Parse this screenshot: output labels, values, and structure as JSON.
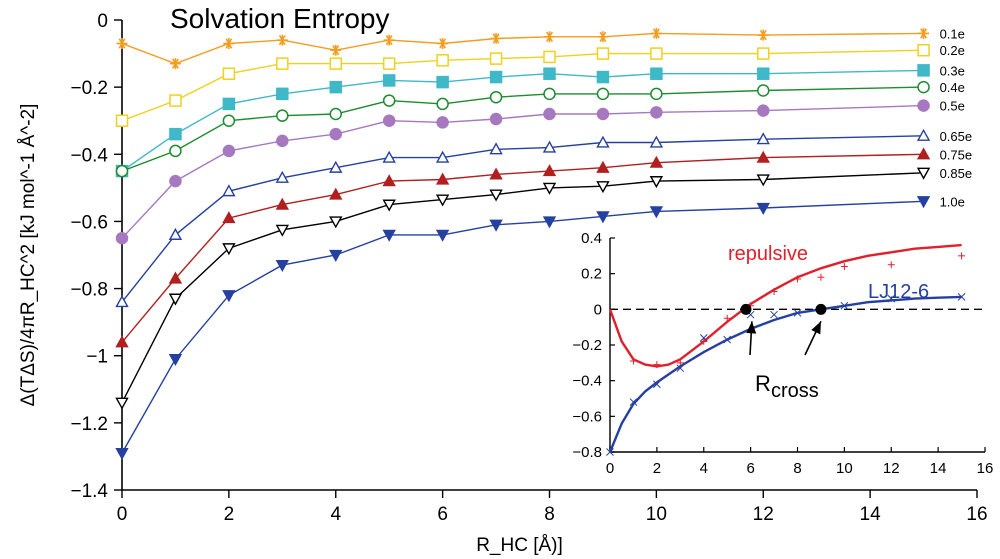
{
  "chart_data": [
    {
      "type": "line",
      "title": "Solvation Entropy",
      "xlabel": "R_HC [Å)]",
      "ylabel": "Δ(TΔS)/4πR_HC^2 [kJ mol^-1 Å^-2]",
      "xlim": [
        0,
        16
      ],
      "ylim": [
        -1.4,
        0
      ],
      "xticks": [
        "0",
        "2",
        "4",
        "6",
        "8",
        "10",
        "12",
        "14",
        "16"
      ],
      "yticks": [
        "0",
        "−0.2",
        "−0.4",
        "−0.6",
        "−0.8",
        "−1",
        "−1.2",
        "−1.4"
      ],
      "grid": false,
      "x": [
        0,
        1,
        2,
        3,
        4,
        5,
        6,
        7,
        8,
        9,
        10,
        12,
        15
      ],
      "series": [
        {
          "name": "0.1e",
          "color": "#f39c1f",
          "marker": "asterisk",
          "values": [
            -0.07,
            -0.13,
            -0.07,
            -0.06,
            -0.09,
            -0.06,
            -0.07,
            -0.055,
            -0.05,
            -0.05,
            -0.04,
            -0.045,
            -0.04
          ]
        },
        {
          "name": "0.2e",
          "color": "#f0d020",
          "marker": "square-open",
          "values": [
            -0.3,
            -0.24,
            -0.16,
            -0.13,
            -0.13,
            -0.13,
            -0.12,
            -0.115,
            -0.11,
            -0.1,
            -0.1,
            -0.1,
            -0.09
          ]
        },
        {
          "name": "0.3e",
          "color": "#3fb8c8",
          "marker": "square-filled",
          "values": [
            -0.45,
            -0.34,
            -0.25,
            -0.22,
            -0.2,
            -0.18,
            -0.185,
            -0.17,
            -0.16,
            -0.17,
            -0.16,
            -0.16,
            -0.15
          ]
        },
        {
          "name": "0.4e",
          "color": "#1e8c2f",
          "marker": "circle-open",
          "values": [
            -0.45,
            -0.39,
            -0.3,
            -0.285,
            -0.28,
            -0.24,
            -0.25,
            -0.23,
            -0.22,
            -0.22,
            -0.22,
            -0.21,
            -0.2
          ]
        },
        {
          "name": "0.5e",
          "color": "#a678c0",
          "marker": "circle-filled",
          "values": [
            -0.65,
            -0.48,
            -0.39,
            -0.36,
            -0.34,
            -0.3,
            -0.305,
            -0.295,
            -0.28,
            -0.28,
            -0.275,
            -0.27,
            -0.255
          ]
        },
        {
          "name": "0.65e",
          "color": "#2540a0",
          "marker": "triangle-open",
          "values": [
            -0.84,
            -0.64,
            -0.51,
            -0.47,
            -0.44,
            -0.41,
            -0.41,
            -0.385,
            -0.38,
            -0.365,
            -0.365,
            -0.355,
            -0.345
          ]
        },
        {
          "name": "0.75e",
          "color": "#b02020",
          "marker": "triangle-filled",
          "values": [
            -0.96,
            -0.77,
            -0.59,
            -0.55,
            -0.52,
            -0.48,
            -0.475,
            -0.46,
            -0.45,
            -0.44,
            -0.425,
            -0.41,
            -0.4
          ]
        },
        {
          "name": "0.85e",
          "color": "#000000",
          "marker": "triangle-down-open",
          "values": [
            -1.14,
            -0.83,
            -0.68,
            -0.625,
            -0.6,
            -0.55,
            -0.535,
            -0.52,
            -0.5,
            -0.495,
            -0.48,
            -0.475,
            -0.455
          ]
        },
        {
          "name": "1.0e",
          "color": "#2540a0",
          "marker": "triangle-down-filled",
          "values": [
            -1.29,
            -1.01,
            -0.82,
            -0.73,
            -0.7,
            -0.64,
            -0.64,
            -0.61,
            -0.6,
            -0.585,
            -0.57,
            -0.56,
            -0.54
          ]
        }
      ]
    },
    {
      "type": "line",
      "inset": true,
      "xlim": [
        0,
        16
      ],
      "ylim": [
        -0.8,
        0.4
      ],
      "xticks": [
        "0",
        "2",
        "4",
        "6",
        "8",
        "10",
        "12",
        "14",
        "16"
      ],
      "yticks": [
        "0.4",
        "0.2",
        "0",
        "−0.2",
        "−0.4",
        "−0.6",
        "−0.8"
      ],
      "annotation": "R",
      "annotation_sub": "cross",
      "crossings": [
        5.8,
        9.0
      ],
      "series": [
        {
          "name": "repulsive",
          "color": "#e0202c",
          "curve_x": [
            0,
            0.5,
            1,
            1.5,
            2,
            2.5,
            3,
            4,
            5,
            6,
            7,
            8,
            9,
            10,
            11,
            12,
            13,
            14,
            15
          ],
          "curve_y": [
            0.0,
            -0.18,
            -0.28,
            -0.31,
            -0.32,
            -0.31,
            -0.28,
            -0.18,
            -0.07,
            0.03,
            0.11,
            0.18,
            0.23,
            0.27,
            0.3,
            0.32,
            0.34,
            0.35,
            0.36
          ],
          "points_x": [
            1,
            2,
            3,
            4,
            5,
            6,
            7,
            8,
            9,
            10,
            12,
            15
          ],
          "points_y": [
            -0.29,
            -0.31,
            -0.3,
            -0.18,
            -0.05,
            0.02,
            0.1,
            0.17,
            0.18,
            0.24,
            0.25,
            0.3
          ]
        },
        {
          "name": "LJ12-6",
          "color": "#2540a0",
          "curve_x": [
            0,
            0.5,
            1,
            1.5,
            2,
            3,
            4,
            5,
            6,
            7,
            8,
            9,
            10,
            11,
            12,
            13,
            14,
            15
          ],
          "curve_y": [
            -0.8,
            -0.64,
            -0.53,
            -0.46,
            -0.41,
            -0.32,
            -0.24,
            -0.17,
            -0.11,
            -0.06,
            -0.02,
            0.0,
            0.02,
            0.04,
            0.05,
            0.06,
            0.065,
            0.07
          ],
          "points_x": [
            0,
            1,
            2,
            3,
            4,
            5,
            6,
            7,
            8,
            9,
            10,
            12,
            15
          ],
          "points_y": [
            -0.8,
            -0.52,
            -0.42,
            -0.33,
            -0.16,
            -0.17,
            -0.03,
            -0.03,
            -0.02,
            0.0,
            0.02,
            0.06,
            0.07
          ]
        }
      ]
    }
  ]
}
